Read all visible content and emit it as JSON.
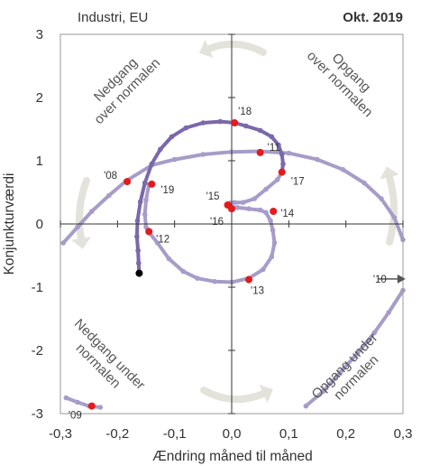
{
  "header": {
    "subject": "Industri, EU",
    "date": "Okt. 2019"
  },
  "chart_data": {
    "type": "line",
    "xlabel": "Ændring måned til måned",
    "ylabel": "Konjunkturværdi",
    "xlim": [
      -0.3,
      0.3
    ],
    "ylim": [
      -3,
      3
    ],
    "x_ticks": [
      "-0,3",
      "-0,2",
      "-0,1",
      "0,0",
      "0,1",
      "0,2",
      "0,3"
    ],
    "y_ticks": [
      "3",
      "2",
      "1",
      "0",
      "-1",
      "-2",
      "-3"
    ],
    "quadrants": {
      "top_left": [
        "Nedgang",
        "over normalen"
      ],
      "top_right": [
        "Opgang",
        "over normalen"
      ],
      "bottom_left": [
        "Nedgang under",
        "normalen"
      ],
      "bottom_right": [
        "Opgang under",
        "normalen"
      ]
    },
    "series": [
      {
        "color": "#a79cc9",
        "points": [
          [
            -0.29,
            -2.75
          ],
          [
            -0.27,
            -2.82
          ],
          [
            -0.25,
            -2.88
          ],
          [
            -0.23,
            -2.9
          ]
        ]
      },
      {
        "color": "#a79cc9",
        "points": [
          [
            0.13,
            -2.88
          ],
          [
            0.16,
            -2.65
          ],
          [
            0.19,
            -2.35
          ],
          [
            0.22,
            -2.05
          ],
          [
            0.25,
            -1.72
          ],
          [
            0.275,
            -1.4
          ],
          [
            0.3,
            -1.05
          ]
        ]
      },
      {
        "color": "#a79cc9",
        "points": [
          [
            0.3,
            -0.25
          ],
          [
            0.285,
            0.1
          ],
          [
            0.262,
            0.4
          ],
          [
            0.232,
            0.65
          ],
          [
            0.195,
            0.86
          ],
          [
            0.15,
            1.02
          ],
          [
            0.1,
            1.12
          ],
          [
            0.05,
            1.15
          ],
          [
            0.0,
            1.14
          ],
          [
            -0.05,
            1.1
          ],
          [
            -0.1,
            1.02
          ],
          [
            -0.14,
            0.93
          ],
          [
            -0.185,
            0.68
          ],
          [
            -0.215,
            0.45
          ],
          [
            -0.245,
            0.2
          ],
          [
            -0.27,
            -0.05
          ],
          [
            -0.295,
            -0.3
          ]
        ]
      },
      {
        "color": "#a79cc9",
        "points": [
          [
            -0.145,
            0.62
          ],
          [
            -0.15,
            0.38
          ],
          [
            -0.152,
            0.15
          ],
          [
            -0.15,
            -0.05
          ],
          [
            -0.145,
            -0.13
          ],
          [
            -0.13,
            -0.3
          ],
          [
            -0.11,
            -0.55
          ],
          [
            -0.085,
            -0.75
          ],
          [
            -0.06,
            -0.86
          ],
          [
            -0.03,
            -0.91
          ],
          [
            0.0,
            -0.92
          ],
          [
            0.03,
            -0.86
          ],
          [
            0.055,
            -0.72
          ],
          [
            0.07,
            -0.52
          ],
          [
            0.075,
            -0.3
          ],
          [
            0.072,
            -0.1
          ],
          [
            0.068,
            0.05
          ],
          [
            0.06,
            0.18
          ],
          [
            0.05,
            0.22
          ],
          [
            0.03,
            0.24
          ],
          [
            0.01,
            0.26
          ],
          [
            0.0,
            0.27
          ],
          [
            -0.005,
            0.3
          ],
          [
            -0.003,
            0.33
          ],
          [
            0.005,
            0.34
          ],
          [
            0.02,
            0.34
          ],
          [
            0.04,
            0.4
          ],
          [
            0.06,
            0.55
          ],
          [
            0.08,
            0.7
          ],
          [
            0.088,
            0.82
          ]
        ]
      },
      {
        "color": "#7b68aa",
        "points": [
          [
            0.088,
            0.82
          ],
          [
            0.09,
            0.95
          ],
          [
            0.088,
            1.1
          ],
          [
            0.082,
            1.25
          ],
          [
            0.07,
            1.38
          ],
          [
            0.05,
            1.48
          ],
          [
            0.025,
            1.55
          ],
          [
            0.005,
            1.6
          ],
          [
            -0.02,
            1.62
          ],
          [
            -0.05,
            1.6
          ],
          [
            -0.08,
            1.52
          ],
          [
            -0.105,
            1.38
          ],
          [
            -0.125,
            1.18
          ],
          [
            -0.14,
            0.95
          ],
          [
            -0.152,
            0.65
          ],
          [
            -0.16,
            0.35
          ],
          [
            -0.165,
            0.05
          ],
          [
            -0.166,
            -0.2
          ],
          [
            -0.164,
            -0.42
          ],
          [
            -0.163,
            -0.62
          ],
          [
            -0.162,
            -0.78
          ]
        ]
      }
    ],
    "markers": [
      {
        "label": "'08",
        "x": -0.183,
        "y": 0.67,
        "color": "#e41a1c"
      },
      {
        "label": "'09",
        "x": -0.245,
        "y": -2.88,
        "color": "#e41a1c"
      },
      {
        "label": "'10",
        "x": 0.295,
        "y": -0.87,
        "color": "#555555"
      },
      {
        "label": "'11",
        "x": 0.05,
        "y": 1.13,
        "color": "#e41a1c"
      },
      {
        "label": "'12",
        "x": -0.145,
        "y": -0.12,
        "color": "#e41a1c"
      },
      {
        "label": "'13",
        "x": 0.03,
        "y": -0.88,
        "color": "#e41a1c"
      },
      {
        "label": "'14",
        "x": 0.073,
        "y": 0.2,
        "color": "#e41a1c"
      },
      {
        "label": "'15",
        "x": -0.007,
        "y": 0.3,
        "color": "#e41a1c"
      },
      {
        "label": "'16",
        "x": 0.0,
        "y": 0.24,
        "color": "#e41a1c"
      },
      {
        "label": "'17",
        "x": 0.088,
        "y": 0.82,
        "color": "#e41a1c"
      },
      {
        "label": "'18",
        "x": 0.005,
        "y": 1.6,
        "color": "#e41a1c"
      },
      {
        "label": "'19",
        "x": -0.14,
        "y": 0.63,
        "color": "#e41a1c"
      },
      {
        "label": "",
        "x": -0.162,
        "y": -0.78,
        "color": "#000000"
      }
    ]
  }
}
